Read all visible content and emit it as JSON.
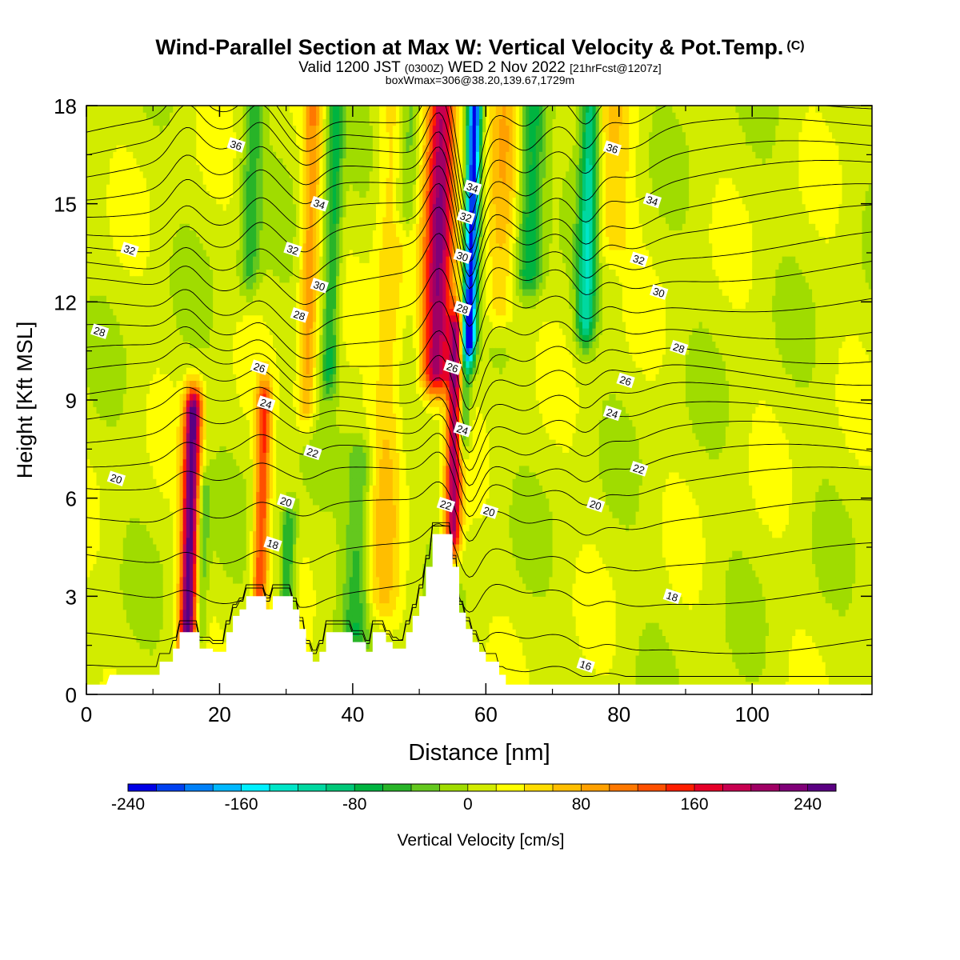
{
  "header": {
    "title": "Wind-Parallel Section at Max W: Vertical Velocity & Pot.Temp.",
    "copyright": "(C)",
    "valid_main": "Valid 1200 JST",
    "valid_zulu": "(0300Z)",
    "valid_date": "WED 2 Nov 2022",
    "forecast": "[21hrFcst@1207z]",
    "box_info": "boxWmax=306@38.20,139.67,1729m"
  },
  "chart_data": {
    "type": "heatmap",
    "xlabel": "Distance [nm]",
    "ylabel": "Height [Kft MSL]",
    "xlim": [
      0,
      118
    ],
    "ylim": [
      0,
      18
    ],
    "xticks": [
      0,
      20,
      40,
      60,
      80,
      100
    ],
    "yticks": [
      0,
      3,
      6,
      9,
      12,
      15,
      18
    ],
    "background_value": 10,
    "updrafts": [
      {
        "x": 15.2,
        "w": 1.3,
        "z0": 1.8,
        "z1": 8.6,
        "peak": 240
      },
      {
        "x": 26.0,
        "w": 1.1,
        "z0": 3.0,
        "z1": 8.8,
        "peak": 130
      },
      {
        "x": 33.0,
        "w": 1.4,
        "z0": 9.0,
        "z1": 18.0,
        "peak": 80
      },
      {
        "x": 44.5,
        "w": 2.5,
        "z0": 3.0,
        "z1": 18.0,
        "peak": 50
      },
      {
        "x": 52.5,
        "w": 2.2,
        "z0": 10.0,
        "z1": 18.0,
        "peak": 200
      },
      {
        "x": 55.0,
        "w": 1.2,
        "z0": 5.0,
        "z1": 11.0,
        "peak": 200
      },
      {
        "x": 62.0,
        "w": 2.5,
        "z0": 12.0,
        "z1": 18.0,
        "peak": 60
      },
      {
        "x": 79.0,
        "w": 3.0,
        "z0": 14.0,
        "z1": 18.0,
        "peak": 40
      }
    ],
    "downdrafts": [
      {
        "x": 57.5,
        "w": 1.0,
        "z0": 11.0,
        "z1": 18.0,
        "peak": -240
      },
      {
        "x": 56.5,
        "w": 1.0,
        "z0": 8.0,
        "z1": 11.0,
        "peak": -110
      },
      {
        "x": 36.5,
        "w": 1.3,
        "z0": 10.0,
        "z1": 18.0,
        "peak": -80
      },
      {
        "x": 40.5,
        "w": 2.0,
        "z0": 2.0,
        "z1": 7.0,
        "peak": -60
      },
      {
        "x": 30.0,
        "w": 1.2,
        "z0": 2.0,
        "z1": 5.0,
        "peak": -80
      },
      {
        "x": 66.5,
        "w": 2.0,
        "z0": 13.0,
        "z1": 18.0,
        "peak": -90
      },
      {
        "x": 75.0,
        "w": 1.4,
        "z0": 11.5,
        "z1": 18.0,
        "peak": -120
      },
      {
        "x": 48.0,
        "w": 1.8,
        "z0": 15.0,
        "z1": 18.0,
        "peak": -60
      },
      {
        "x": 24.5,
        "w": 1.5,
        "z0": 13.0,
        "z1": 18.0,
        "peak": -60
      },
      {
        "x": 17.0,
        "w": 1.0,
        "z0": 2.0,
        "z1": 6.0,
        "peak": -60
      }
    ],
    "terrain": [
      [
        0,
        0.3
      ],
      [
        3,
        0.3
      ],
      [
        3.5,
        0.6
      ],
      [
        11,
        0.6
      ],
      [
        11,
        1.0
      ],
      [
        13,
        1.0
      ],
      [
        13,
        1.4
      ],
      [
        14,
        1.4
      ],
      [
        14,
        1.9
      ],
      [
        17,
        1.9
      ],
      [
        17,
        1.4
      ],
      [
        19,
        1.4
      ],
      [
        19,
        1.3
      ],
      [
        21,
        1.3
      ],
      [
        21,
        1.9
      ],
      [
        22,
        1.9
      ],
      [
        22,
        2.4
      ],
      [
        23,
        2.4
      ],
      [
        23,
        2.6
      ],
      [
        24,
        2.6
      ],
      [
        24,
        3.0
      ],
      [
        27,
        3.0
      ],
      [
        27,
        2.6
      ],
      [
        28,
        2.6
      ],
      [
        28,
        3.0
      ],
      [
        31,
        3.0
      ],
      [
        31,
        2.6
      ],
      [
        32,
        2.6
      ],
      [
        32,
        2.0
      ],
      [
        33,
        2.0
      ],
      [
        33,
        1.3
      ],
      [
        34,
        1.3
      ],
      [
        34,
        1.0
      ],
      [
        35,
        1.0
      ],
      [
        35,
        1.3
      ],
      [
        36,
        1.3
      ],
      [
        36,
        1.9
      ],
      [
        40,
        1.9
      ],
      [
        40,
        1.6
      ],
      [
        42,
        1.6
      ],
      [
        42,
        1.3
      ],
      [
        43,
        1.3
      ],
      [
        43,
        1.9
      ],
      [
        45,
        1.9
      ],
      [
        45,
        1.6
      ],
      [
        46,
        1.6
      ],
      [
        46,
        1.4
      ],
      [
        48,
        1.4
      ],
      [
        48,
        1.9
      ],
      [
        49,
        1.9
      ],
      [
        49,
        2.4
      ],
      [
        50,
        2.4
      ],
      [
        50,
        3.0
      ],
      [
        51,
        3.0
      ],
      [
        51,
        3.9
      ],
      [
        52,
        3.9
      ],
      [
        52,
        4.9
      ],
      [
        55,
        4.9
      ],
      [
        55,
        3.9
      ],
      [
        56,
        3.9
      ],
      [
        56,
        2.5
      ],
      [
        57,
        2.5
      ],
      [
        57,
        2.0
      ],
      [
        58,
        2.0
      ],
      [
        58,
        1.6
      ],
      [
        59,
        1.6
      ],
      [
        59,
        1.3
      ],
      [
        60,
        1.3
      ],
      [
        60,
        1.0
      ],
      [
        62,
        1.0
      ],
      [
        62,
        0.6
      ],
      [
        63,
        0.6
      ],
      [
        63,
        0.3
      ],
      [
        118,
        0.3
      ]
    ],
    "theta_levels": [
      16,
      17,
      18,
      19,
      20,
      21,
      22,
      23,
      24,
      25,
      26,
      27,
      28,
      29,
      30,
      31,
      32,
      33,
      34,
      35,
      36,
      37,
      38
    ],
    "theta_base_height": {
      "16": 0.55,
      "17": 1.6,
      "18": 3.1,
      "19": 4.3,
      "20": 5.6,
      "21": 6.6,
      "22": 7.3,
      "23": 8.0,
      "24": 8.6,
      "25": 9.2,
      "26": 9.8,
      "27": 10.4,
      "28": 11.1,
      "29": 11.9,
      "30": 12.8,
      "31": 13.5,
      "32": 14.2,
      "33": 14.8,
      "34": 15.5,
      "35": 16.1,
      "36": 16.8,
      "37": 17.4,
      "38": 18.0
    },
    "theta_labels": [
      {
        "text": "36",
        "x": 22.5,
        "y": 16.8
      },
      {
        "text": "34",
        "x": 35.0,
        "y": 15.0
      },
      {
        "text": "32",
        "x": 31.0,
        "y": 13.6
      },
      {
        "text": "30",
        "x": 35.0,
        "y": 12.5
      },
      {
        "text": "28",
        "x": 32.0,
        "y": 11.6
      },
      {
        "text": "26",
        "x": 26.0,
        "y": 10.0
      },
      {
        "text": "24",
        "x": 27.0,
        "y": 8.9
      },
      {
        "text": "22",
        "x": 34.0,
        "y": 7.4
      },
      {
        "text": "20",
        "x": 30.0,
        "y": 5.9
      },
      {
        "text": "18",
        "x": 28.0,
        "y": 4.6
      },
      {
        "text": "32",
        "x": 6.5,
        "y": 13.6
      },
      {
        "text": "28",
        "x": 2.0,
        "y": 11.1
      },
      {
        "text": "20",
        "x": 4.5,
        "y": 6.6
      },
      {
        "text": "34",
        "x": 58.0,
        "y": 15.5
      },
      {
        "text": "32",
        "x": 57.0,
        "y": 14.6
      },
      {
        "text": "30",
        "x": 56.5,
        "y": 13.4
      },
      {
        "text": "28",
        "x": 56.5,
        "y": 11.8
      },
      {
        "text": "26",
        "x": 55.0,
        "y": 10.0
      },
      {
        "text": "24",
        "x": 56.5,
        "y": 8.1
      },
      {
        "text": "22",
        "x": 54.0,
        "y": 5.8
      },
      {
        "text": "20",
        "x": 60.5,
        "y": 5.6
      },
      {
        "text": "36",
        "x": 79.0,
        "y": 16.7
      },
      {
        "text": "34",
        "x": 85.0,
        "y": 15.1
      },
      {
        "text": "32",
        "x": 83.0,
        "y": 13.3
      },
      {
        "text": "30",
        "x": 86.0,
        "y": 12.3
      },
      {
        "text": "28",
        "x": 89.0,
        "y": 10.6
      },
      {
        "text": "26",
        "x": 81.0,
        "y": 9.6
      },
      {
        "text": "24",
        "x": 79.0,
        "y": 8.6
      },
      {
        "text": "22",
        "x": 83.0,
        "y": 6.9
      },
      {
        "text": "20",
        "x": 76.5,
        "y": 5.8
      },
      {
        "text": "18",
        "x": 88.0,
        "y": 3.0
      },
      {
        "text": "16",
        "x": 75.0,
        "y": 0.9
      }
    ],
    "colorbar": {
      "label": "Vertical Velocity [cm/s]",
      "min": -240,
      "step": 20,
      "ticks": [
        -240,
        -160,
        -80,
        0,
        80,
        160,
        240
      ],
      "colors": [
        "#0000e6",
        "#0040f0",
        "#0080f8",
        "#00b8ff",
        "#00f0ff",
        "#00e6c8",
        "#00d8a0",
        "#00c878",
        "#00b440",
        "#28b428",
        "#64c81e",
        "#a0dc00",
        "#d2ec00",
        "#ffff00",
        "#ffdc00",
        "#ffbe00",
        "#ffa000",
        "#ff7800",
        "#ff5000",
        "#ff1e00",
        "#e60028",
        "#c80050",
        "#a00064",
        "#800078",
        "#5a0082"
      ]
    }
  }
}
